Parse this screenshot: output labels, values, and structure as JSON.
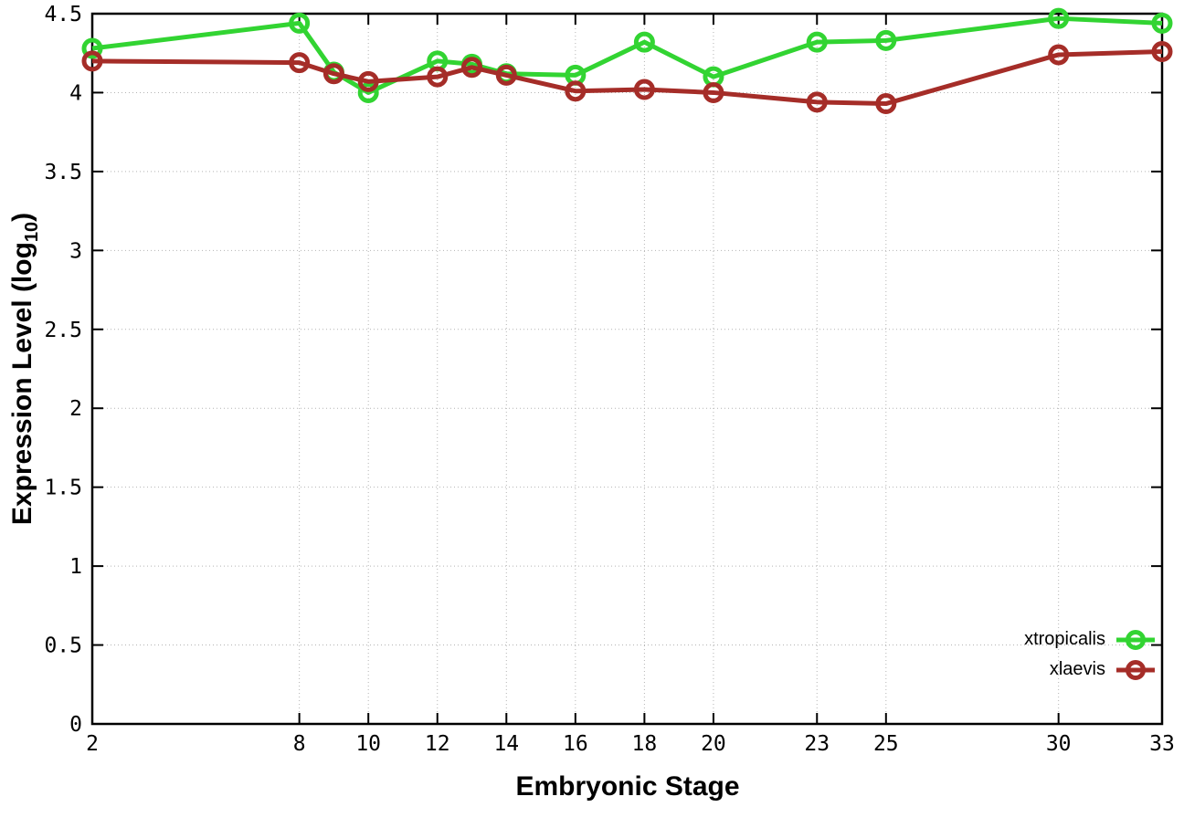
{
  "figure": {
    "background": "#ffffff",
    "xlabel": "Embryonic Stage",
    "ylabel_prefix": "Expression Level (log",
    "ylabel_sub": "10",
    "ylabel_suffix": ")"
  },
  "chart_data": {
    "type": "line",
    "title": "",
    "xlabel": "Embryonic Stage",
    "ylabel": "Expression Level (log10)",
    "grid": true,
    "legend_position": "bottom-right",
    "marker": "open-circle",
    "xlim": [
      2,
      33
    ],
    "ylim": [
      0,
      4.5
    ],
    "x_ticks": [
      2,
      8,
      10,
      12,
      14,
      16,
      18,
      20,
      23,
      25,
      30,
      33
    ],
    "y_ticks": [
      0,
      0.5,
      1,
      1.5,
      2,
      2.5,
      3,
      3.5,
      4,
      4.5
    ],
    "x": [
      2,
      8,
      9,
      10,
      12,
      13,
      14,
      16,
      18,
      20,
      23,
      25,
      30,
      33
    ],
    "series": [
      {
        "name": "xtropicalis",
        "color": "#32d432",
        "values": [
          4.28,
          4.44,
          4.13,
          4.0,
          4.2,
          4.18,
          4.12,
          4.11,
          4.32,
          4.1,
          4.32,
          4.33,
          4.47,
          4.44
        ]
      },
      {
        "name": "xlaevis",
        "color": "#a52d28",
        "values": [
          4.2,
          4.19,
          4.12,
          4.07,
          4.1,
          4.16,
          4.11,
          4.01,
          4.02,
          4.0,
          3.94,
          3.93,
          4.24,
          4.26
        ]
      }
    ]
  }
}
